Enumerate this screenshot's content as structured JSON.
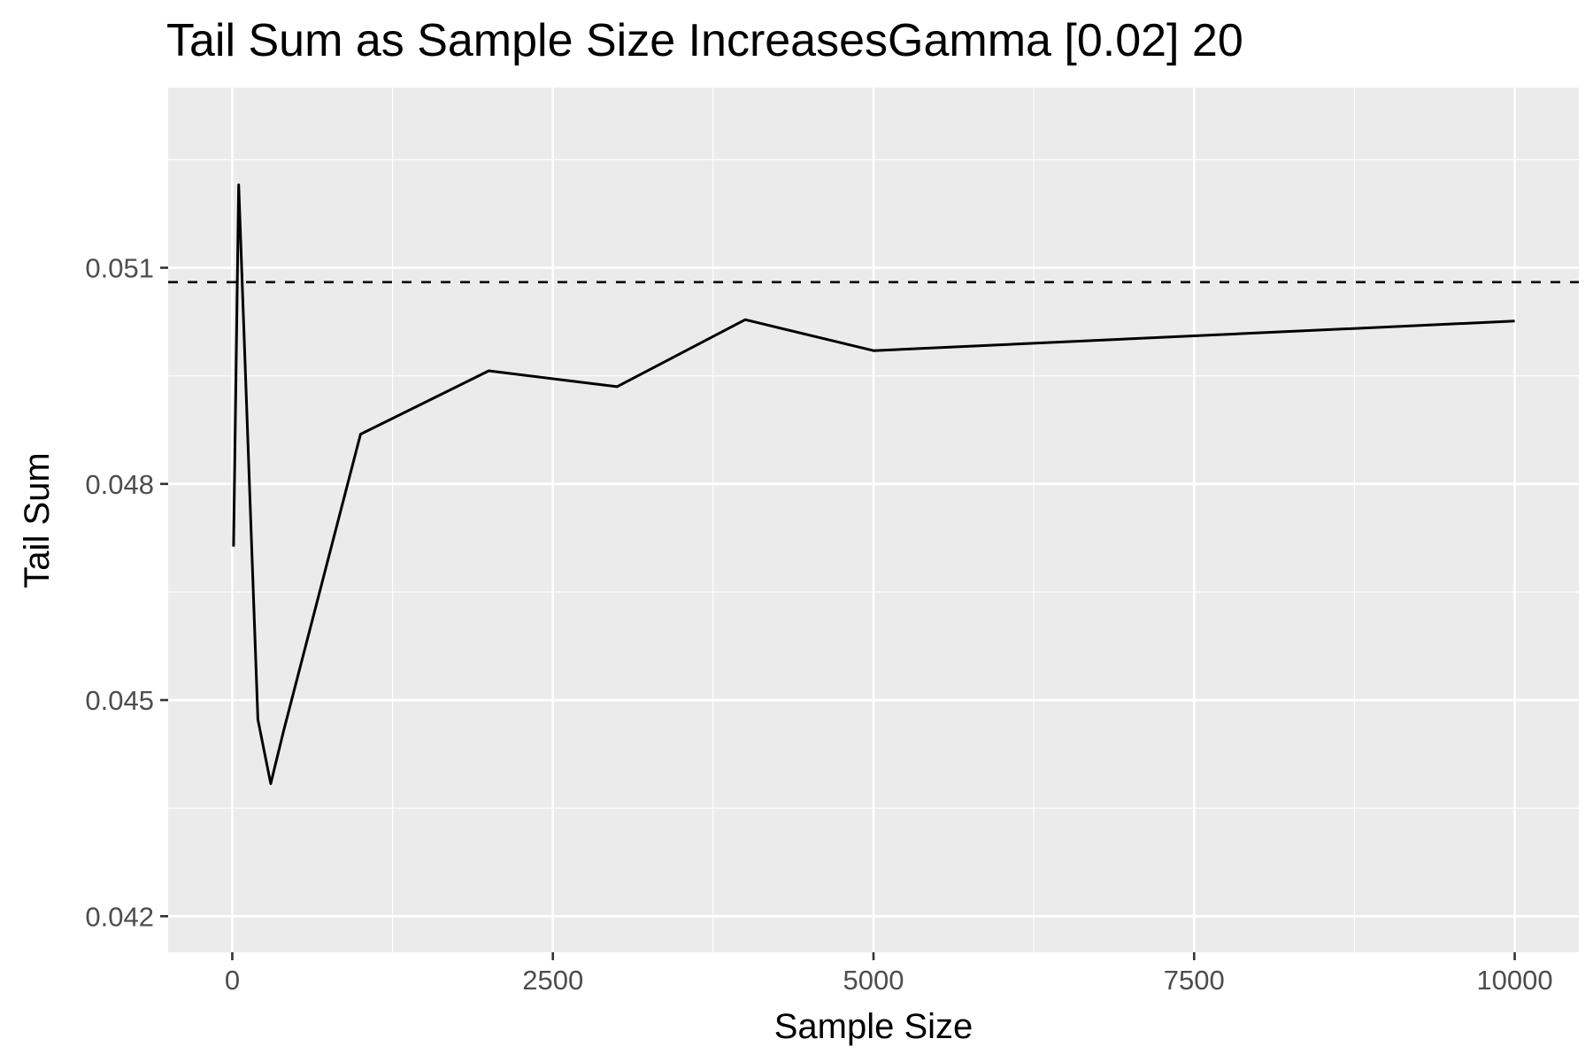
{
  "chart_data": {
    "type": "line",
    "title": "Tail Sum as Sample Size IncreasesGamma [0.02] 20",
    "xlabel": "Sample Size",
    "ylabel": "Tail Sum",
    "xlim": [
      -500,
      10500
    ],
    "ylim": [
      0.0415,
      0.0535
    ],
    "x_ticks": [
      0,
      2500,
      5000,
      7500,
      10000
    ],
    "x_tick_labels": [
      "0",
      "2500",
      "5000",
      "7500",
      "10000"
    ],
    "y_ticks": [
      0.042,
      0.045,
      0.048,
      0.051
    ],
    "y_tick_labels": [
      "0.042",
      "0.045",
      "0.048",
      "0.051"
    ],
    "grid": true,
    "background": "#ebebeb",
    "grid_color": "#ffffff",
    "line_color": "#000000",
    "series": [
      {
        "x": [
          10,
          50,
          200,
          300,
          400,
          1000,
          2000,
          3000,
          4000,
          5000,
          10000
        ],
        "values": [
          0.04713,
          0.05215,
          0.04473,
          0.04384,
          0.04457,
          0.04869,
          0.04957,
          0.04935,
          0.05028,
          0.04985,
          0.05026
        ]
      }
    ],
    "reference_line": {
      "y": 0.0508,
      "style": "dashed"
    }
  }
}
